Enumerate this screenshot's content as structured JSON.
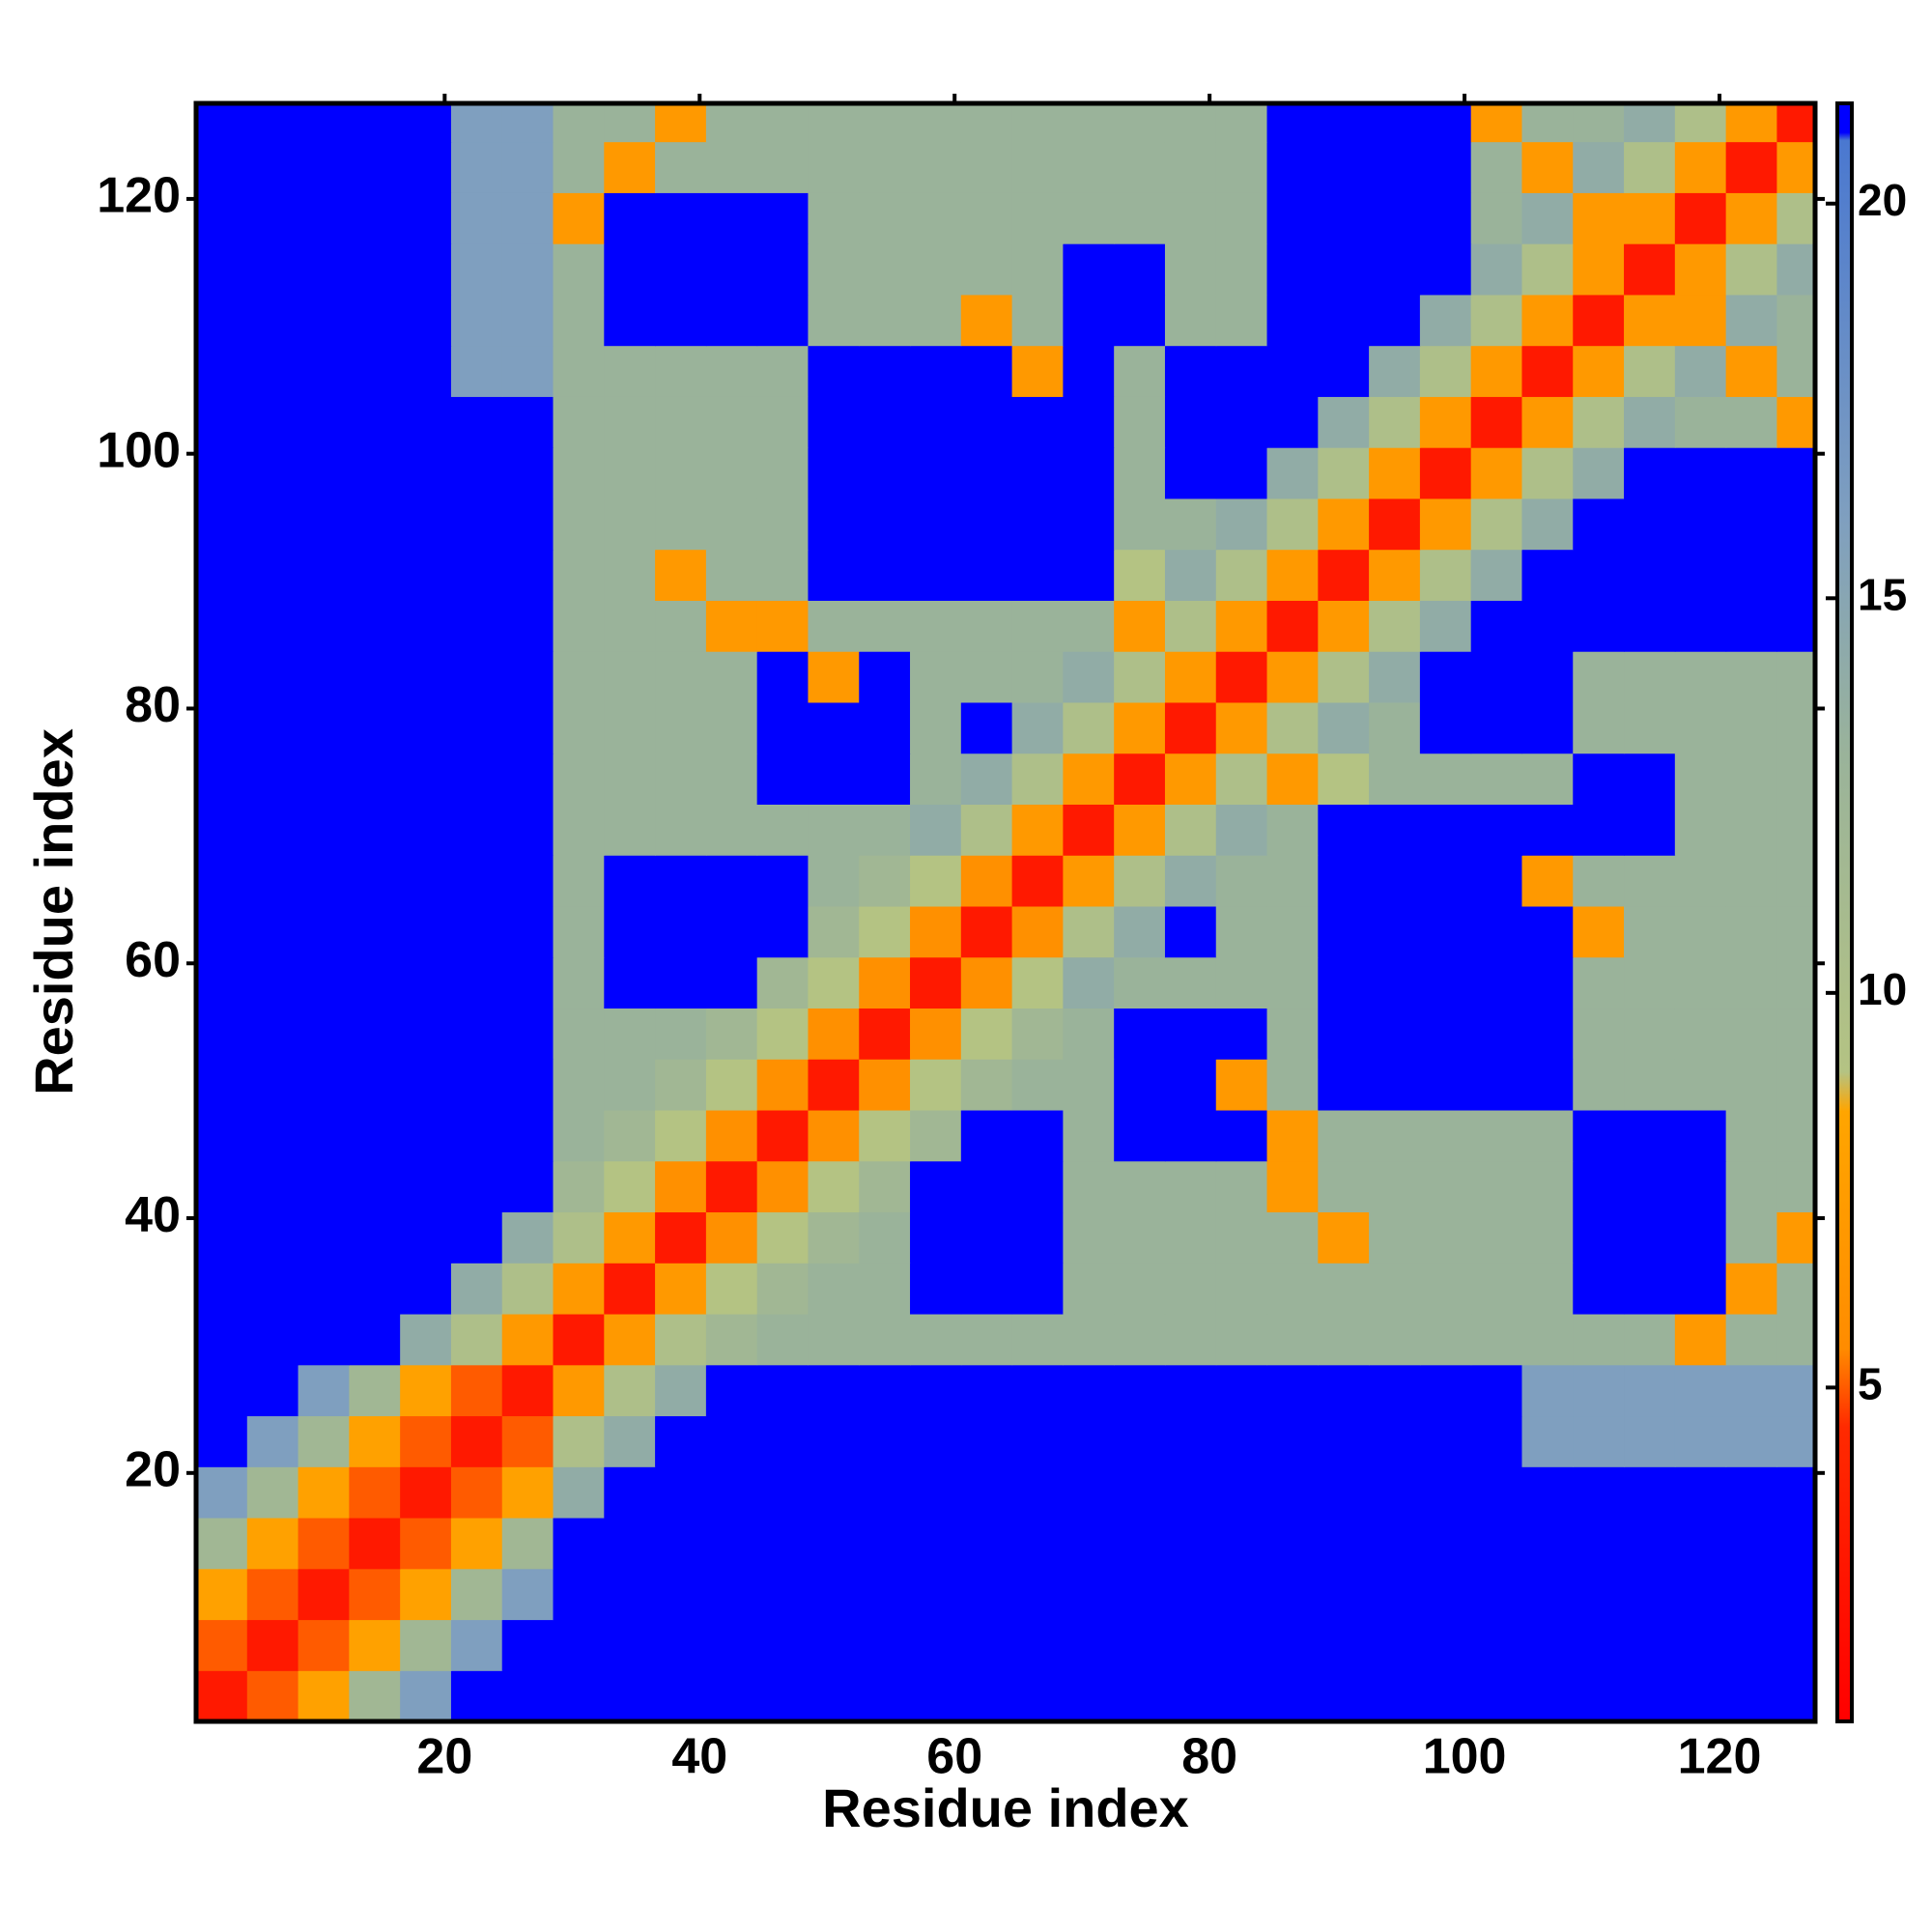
{
  "chart_data": {
    "type": "heatmap",
    "x_label": "Residue index",
    "y_label": "Residue index",
    "xlim": [
      0.5,
      127.5
    ],
    "ylim": [
      0.5,
      127.5
    ],
    "xticks": [
      20,
      40,
      60,
      80,
      100,
      120
    ],
    "yticks": [
      20,
      40,
      60,
      80,
      100,
      120
    ],
    "xbins": [
      0.5,
      4.5,
      8.5,
      12.5,
      16.5,
      20.5,
      24.5,
      28.5,
      32.5,
      36.5,
      40.5,
      44.5,
      48.5,
      52.5,
      56.5,
      60.5,
      64.5,
      68.5,
      72.5,
      76.5,
      80.5,
      84.5,
      88.5,
      92.5,
      96.5,
      100.5,
      104.5,
      108.5,
      112.5,
      116.5,
      120.5,
      124.5,
      128.5
    ],
    "ybins": [
      0.5,
      4.5,
      8.5,
      12.5,
      16.5,
      20.5,
      24.5,
      28.5,
      32.5,
      36.5,
      40.5,
      44.5,
      48.5,
      52.5,
      56.5,
      60.5,
      64.5,
      68.5,
      72.5,
      76.5,
      80.5,
      84.5,
      88.5,
      92.5,
      96.5,
      100.5,
      104.5,
      108.5,
      112.5,
      116.5,
      120.5,
      124.5,
      128.5
    ],
    "colorbar": {
      "lim": [
        0.77,
        21.27
      ],
      "ticks": [
        5,
        10,
        15,
        20
      ]
    },
    "colorscale": [
      [
        0.77,
        "#ff0000"
      ],
      [
        4.5,
        "#ff2a00"
      ],
      [
        5.5,
        "#ff8c00"
      ],
      [
        8.5,
        "#ffa500"
      ],
      [
        9,
        "#b4c383"
      ],
      [
        13,
        "#9ab39a"
      ],
      [
        16,
        "#7f9fbf"
      ],
      [
        20.8,
        "#4a78d0"
      ],
      [
        20.9,
        "#0000ff"
      ],
      [
        21.27,
        "#0000ff"
      ]
    ],
    "values": [
      [
        3,
        5,
        8,
        12,
        16,
        21,
        21,
        21,
        21,
        21,
        21,
        21,
        21,
        21,
        21,
        21,
        21,
        21,
        21,
        21,
        21,
        21,
        21,
        21,
        21,
        21,
        21,
        21,
        21,
        21,
        21,
        21
      ],
      [
        5,
        3,
        5,
        8,
        12,
        16,
        21,
        21,
        21,
        21,
        21,
        21,
        21,
        21,
        21,
        21,
        21,
        21,
        21,
        21,
        21,
        21,
        21,
        21,
        21,
        21,
        21,
        21,
        21,
        21,
        21,
        21
      ],
      [
        8,
        5,
        3,
        5,
        8,
        12,
        16,
        21,
        21,
        21,
        21,
        21,
        21,
        21,
        21,
        21,
        21,
        21,
        21,
        21,
        21,
        21,
        21,
        21,
        21,
        21,
        21,
        21,
        21,
        21,
        21,
        21
      ],
      [
        12,
        8,
        5,
        3,
        5,
        8,
        12,
        21,
        21,
        21,
        21,
        21,
        21,
        21,
        21,
        21,
        21,
        21,
        21,
        21,
        21,
        21,
        21,
        21,
        21,
        21,
        21,
        21,
        21,
        21,
        21,
        21
      ],
      [
        16,
        12,
        8,
        5,
        3,
        5,
        8,
        14,
        21,
        21,
        21,
        21,
        21,
        21,
        21,
        21,
        21,
        21,
        21,
        21,
        21,
        21,
        21,
        21,
        21,
        21,
        21,
        21,
        21,
        21,
        21,
        21
      ],
      [
        21,
        16,
        12,
        8,
        5,
        3,
        5,
        10,
        14,
        21,
        21,
        21,
        21,
        21,
        21,
        21,
        21,
        21,
        21,
        21,
        21,
        21,
        21,
        21,
        21,
        21,
        16,
        16,
        16,
        16,
        16,
        16
      ],
      [
        21,
        21,
        16,
        12,
        8,
        5,
        3,
        7,
        10,
        14,
        21,
        21,
        21,
        21,
        21,
        21,
        21,
        21,
        21,
        21,
        21,
        21,
        21,
        21,
        21,
        21,
        16,
        16,
        16,
        16,
        16,
        16
      ],
      [
        21,
        21,
        21,
        21,
        14,
        10,
        7,
        3,
        7,
        10,
        12,
        13,
        13,
        13,
        13,
        13,
        13,
        13,
        13,
        13,
        13,
        13,
        13,
        13,
        13,
        13,
        13,
        13,
        13,
        7,
        13,
        13
      ],
      [
        21,
        21,
        21,
        21,
        21,
        14,
        10,
        7,
        3,
        7,
        9,
        12,
        13,
        13,
        21,
        21,
        21,
        13,
        13,
        13,
        13,
        13,
        13,
        13,
        13,
        13,
        13,
        21,
        21,
        21,
        7,
        13
      ],
      [
        21,
        21,
        21,
        21,
        21,
        21,
        14,
        10,
        7,
        3,
        6,
        9,
        12,
        13,
        21,
        21,
        21,
        13,
        13,
        13,
        13,
        13,
        7,
        13,
        13,
        13,
        13,
        21,
        21,
        21,
        13,
        7
      ],
      [
        21,
        21,
        21,
        21,
        21,
        21,
        21,
        12,
        9,
        6,
        3,
        6,
        9,
        12,
        21,
        21,
        21,
        13,
        13,
        13,
        13,
        7,
        13,
        13,
        13,
        13,
        13,
        21,
        21,
        21,
        13,
        13
      ],
      [
        21,
        21,
        21,
        21,
        21,
        21,
        21,
        13,
        12,
        9,
        6,
        3,
        6,
        9,
        12,
        21,
        21,
        13,
        21,
        21,
        21,
        7,
        13,
        13,
        13,
        13,
        13,
        21,
        21,
        21,
        13,
        13
      ],
      [
        21,
        21,
        21,
        21,
        21,
        21,
        21,
        13,
        13,
        12,
        9,
        6,
        3,
        6,
        9,
        12,
        13,
        13,
        21,
        21,
        7,
        13,
        21,
        21,
        21,
        21,
        21,
        13,
        13,
        13,
        13,
        13
      ],
      [
        21,
        21,
        21,
        21,
        21,
        21,
        21,
        13,
        13,
        13,
        12,
        9,
        6,
        3,
        6,
        9,
        12,
        13,
        21,
        21,
        21,
        13,
        21,
        21,
        21,
        21,
        21,
        13,
        13,
        13,
        13,
        13
      ],
      [
        21,
        21,
        21,
        21,
        21,
        21,
        21,
        13,
        21,
        21,
        21,
        12,
        9,
        6,
        3,
        6,
        9,
        14,
        13,
        13,
        13,
        13,
        21,
        21,
        21,
        21,
        21,
        13,
        13,
        13,
        13,
        13
      ],
      [
        21,
        21,
        21,
        21,
        21,
        21,
        21,
        13,
        21,
        21,
        21,
        21,
        12,
        9,
        6,
        3,
        6,
        10,
        14,
        21,
        13,
        13,
        21,
        21,
        21,
        21,
        21,
        7,
        13,
        13,
        13,
        13
      ],
      [
        21,
        21,
        21,
        21,
        21,
        21,
        21,
        13,
        21,
        21,
        21,
        21,
        13,
        12,
        9,
        6,
        3,
        7,
        10,
        14,
        13,
        13,
        21,
        21,
        21,
        21,
        7,
        13,
        13,
        13,
        13,
        13
      ],
      [
        21,
        21,
        21,
        21,
        21,
        21,
        21,
        13,
        13,
        13,
        13,
        13,
        13,
        13,
        14,
        10,
        7,
        3,
        7,
        10,
        14,
        13,
        21,
        21,
        21,
        21,
        21,
        21,
        21,
        13,
        13,
        13
      ],
      [
        21,
        21,
        21,
        21,
        21,
        21,
        21,
        13,
        13,
        13,
        13,
        21,
        21,
        21,
        13,
        14,
        10,
        7,
        3,
        7,
        10,
        7,
        9,
        13,
        13,
        13,
        13,
        21,
        21,
        13,
        13,
        13
      ],
      [
        21,
        21,
        21,
        21,
        21,
        21,
        21,
        13,
        13,
        13,
        13,
        21,
        21,
        21,
        13,
        21,
        14,
        10,
        7,
        3,
        7,
        10,
        14,
        13,
        21,
        21,
        21,
        13,
        13,
        13,
        13,
        13
      ],
      [
        21,
        21,
        21,
        21,
        21,
        21,
        21,
        13,
        13,
        13,
        13,
        21,
        7,
        21,
        13,
        13,
        13,
        14,
        10,
        7,
        3,
        7,
        10,
        14,
        21,
        21,
        21,
        13,
        13,
        13,
        13,
        13
      ],
      [
        21,
        21,
        21,
        21,
        21,
        21,
        21,
        13,
        13,
        13,
        7,
        7,
        13,
        13,
        13,
        13,
        13,
        13,
        7,
        10,
        7,
        3,
        7,
        10,
        14,
        21,
        21,
        21,
        21,
        21,
        21,
        21
      ],
      [
        21,
        21,
        21,
        21,
        21,
        21,
        21,
        13,
        13,
        7,
        13,
        13,
        21,
        21,
        21,
        21,
        21,
        21,
        9,
        14,
        10,
        7,
        3,
        7,
        10,
        14,
        21,
        21,
        21,
        21,
        21,
        21
      ],
      [
        21,
        21,
        21,
        21,
        21,
        21,
        21,
        13,
        13,
        13,
        13,
        13,
        21,
        21,
        21,
        21,
        21,
        21,
        13,
        13,
        14,
        10,
        7,
        3,
        7,
        10,
        14,
        21,
        21,
        21,
        21,
        21
      ],
      [
        21,
        21,
        21,
        21,
        21,
        21,
        21,
        13,
        13,
        13,
        13,
        13,
        21,
        21,
        21,
        21,
        21,
        21,
        13,
        21,
        21,
        14,
        10,
        7,
        3,
        7,
        10,
        14,
        21,
        21,
        21,
        21
      ],
      [
        21,
        21,
        21,
        21,
        21,
        21,
        21,
        13,
        13,
        13,
        13,
        13,
        21,
        21,
        21,
        21,
        21,
        21,
        13,
        21,
        21,
        21,
        14,
        10,
        7,
        3,
        7,
        10,
        14,
        13,
        13,
        7
      ],
      [
        21,
        21,
        21,
        21,
        21,
        16,
        16,
        13,
        13,
        13,
        13,
        13,
        21,
        21,
        21,
        21,
        7,
        21,
        13,
        21,
        21,
        21,
        21,
        14,
        10,
        7,
        3,
        7,
        10,
        14,
        7,
        13
      ],
      [
        21,
        21,
        21,
        21,
        21,
        16,
        16,
        13,
        21,
        21,
        21,
        21,
        13,
        13,
        13,
        7,
        13,
        21,
        21,
        13,
        13,
        21,
        21,
        21,
        14,
        10,
        7,
        3,
        7,
        7,
        14,
        13
      ],
      [
        21,
        21,
        21,
        21,
        21,
        16,
        16,
        13,
        21,
        21,
        21,
        21,
        13,
        13,
        13,
        13,
        13,
        21,
        21,
        13,
        13,
        21,
        21,
        21,
        21,
        14,
        10,
        7,
        3,
        7,
        10,
        14
      ],
      [
        21,
        21,
        21,
        21,
        21,
        16,
        16,
        7,
        21,
        21,
        21,
        21,
        13,
        13,
        13,
        13,
        13,
        13,
        13,
        13,
        13,
        21,
        21,
        21,
        21,
        13,
        14,
        7,
        7,
        3,
        7,
        10
      ],
      [
        21,
        21,
        21,
        21,
        21,
        16,
        16,
        13,
        7,
        13,
        13,
        13,
        13,
        13,
        13,
        13,
        13,
        13,
        13,
        13,
        13,
        21,
        21,
        21,
        21,
        13,
        7,
        14,
        10,
        7,
        3,
        7
      ],
      [
        21,
        21,
        21,
        21,
        21,
        16,
        16,
        13,
        13,
        7,
        13,
        13,
        13,
        13,
        13,
        13,
        13,
        13,
        13,
        13,
        13,
        21,
        21,
        21,
        21,
        7,
        13,
        13,
        14,
        10,
        7,
        3
      ]
    ]
  }
}
